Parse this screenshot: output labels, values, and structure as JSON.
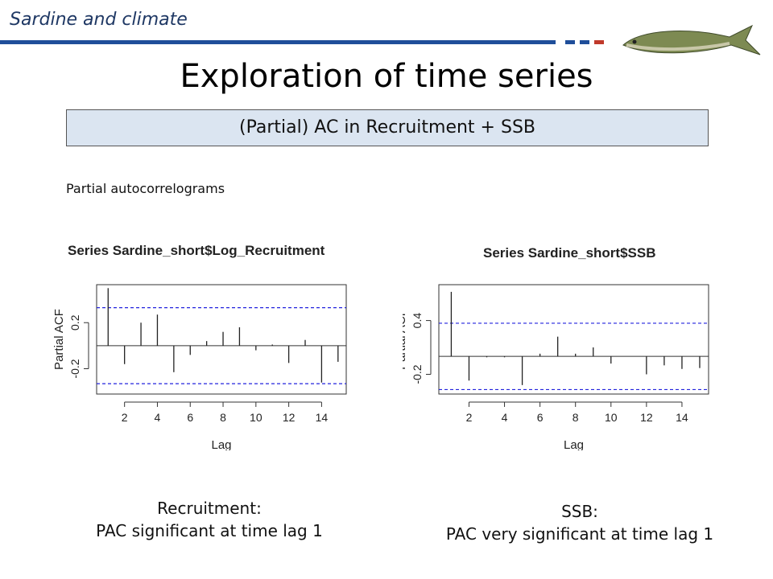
{
  "header": {
    "label": "Sardine and climate"
  },
  "colors": {
    "accent": "#1f4e9a",
    "dash_blue": "#1f4e9a",
    "dash_red": "#c0392b",
    "ci_line": "#2222dd"
  },
  "title": "Exploration of time series",
  "subtitle": "(Partial) AC in Recruitment + SSB",
  "section_label": "Partial autocorrelograms",
  "chart_data": [
    {
      "type": "bar",
      "title": "Series  Sardine_short$Log_Recruitment",
      "xlabel": "Lag",
      "ylabel": "Partial ACF",
      "x": [
        1,
        2,
        3,
        4,
        5,
        6,
        7,
        8,
        9,
        10,
        11,
        12,
        13,
        14,
        15
      ],
      "values": [
        0.5,
        -0.16,
        0.2,
        0.27,
        -0.23,
        -0.08,
        0.04,
        0.12,
        0.16,
        -0.04,
        0.01,
        -0.15,
        0.05,
        -0.32,
        -0.14
      ],
      "ci": 0.33,
      "xlim": [
        0.3,
        15.5
      ],
      "ylim": [
        -0.42,
        0.53
      ],
      "xticks": [
        2,
        4,
        6,
        8,
        10,
        12,
        14
      ],
      "yticks": [
        -0.2,
        0.2
      ]
    },
    {
      "type": "bar",
      "title": "Series  Sardine_short$SSB",
      "xlabel": "Lag",
      "ylabel": "Partial ACF",
      "x": [
        1,
        2,
        3,
        4,
        5,
        6,
        7,
        8,
        9,
        10,
        11,
        12,
        13,
        14,
        15
      ],
      "values": [
        0.72,
        -0.27,
        -0.01,
        -0.01,
        -0.32,
        0.03,
        0.22,
        0.03,
        0.1,
        -0.08,
        0.0,
        -0.2,
        -0.1,
        -0.14,
        -0.13
      ],
      "ci": 0.37,
      "xlim": [
        0.3,
        15.5
      ],
      "ylim": [
        -0.42,
        0.8
      ],
      "xticks": [
        2,
        4,
        6,
        8,
        10,
        12,
        14
      ],
      "yticks": [
        -0.2,
        0.4
      ]
    }
  ],
  "captions": [
    {
      "line1": "Recruitment:",
      "line2": "PAC significant at time lag 1"
    },
    {
      "line1": "SSB:",
      "line2": "PAC very significant at time lag 1"
    }
  ]
}
